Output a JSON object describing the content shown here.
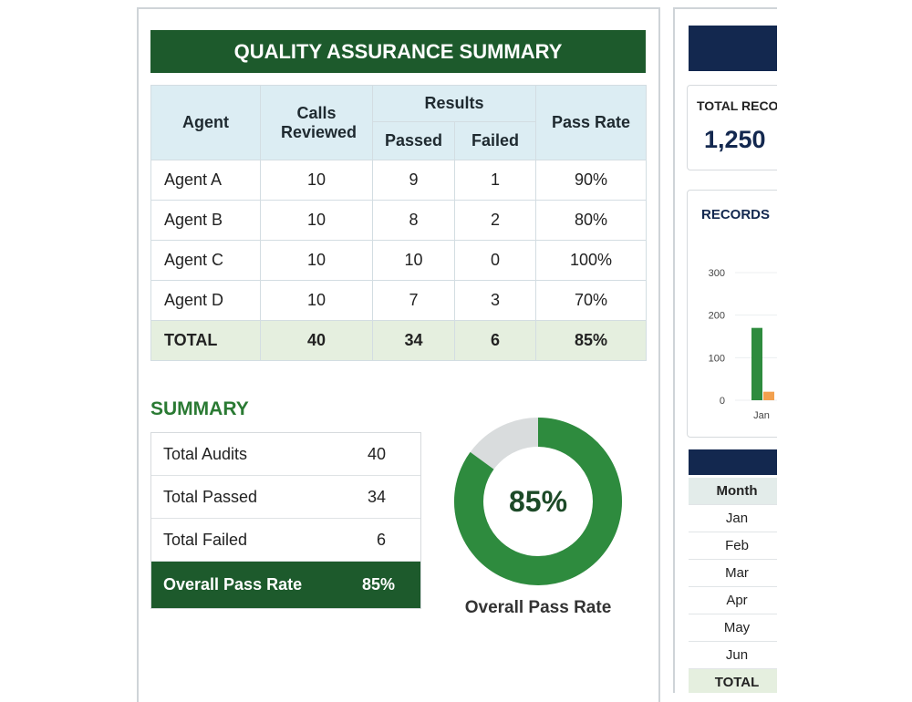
{
  "qa_table": {
    "title": "QUALITY ASSURANCE SUMMARY",
    "headers": {
      "agent": "Agent",
      "calls": "Calls Reviewed",
      "results": "Results",
      "passed": "Passed",
      "failed": "Failed",
      "pass_rate": "Pass Rate"
    },
    "rows": [
      [
        "Agent A",
        "10",
        "9",
        "1",
        "90%"
      ],
      [
        "Agent B",
        "10",
        "8",
        "2",
        "80%"
      ],
      [
        "Agent C",
        "10",
        "10",
        "0",
        "100%"
      ],
      [
        "Agent D",
        "10",
        "7",
        "3",
        "70%"
      ]
    ],
    "total": [
      "TOTAL",
      "40",
      "34",
      "6",
      "85%"
    ]
  },
  "summary": {
    "title": "SUMMARY",
    "rows": [
      [
        "Total Audits",
        "40"
      ],
      [
        "Total Passed",
        "34"
      ],
      [
        "Total Failed",
        "6"
      ]
    ],
    "highlight": [
      "Overall Pass Rate",
      "85%"
    ]
  },
  "donut": {
    "value": 85,
    "label": "85%",
    "caption": "Overall Pass Rate"
  },
  "side": {
    "total_card": {
      "label": "TOTAL RECO",
      "value": "1,250"
    },
    "chart": {
      "type": "bar",
      "title": "RECORDS",
      "categories": [
        "Jan"
      ],
      "series": [
        {
          "color": "#2e8b3e",
          "values": [
            170
          ]
        },
        {
          "color": "#f2a04e",
          "values": [
            20
          ]
        }
      ],
      "ylim": [
        0,
        300
      ],
      "yticks": [
        0,
        100,
        200,
        300
      ]
    },
    "months": {
      "header": "Month",
      "rows": [
        "Jan",
        "Feb",
        "Mar",
        "Apr",
        "May",
        "Jun"
      ],
      "total": "TOTAL"
    }
  }
}
